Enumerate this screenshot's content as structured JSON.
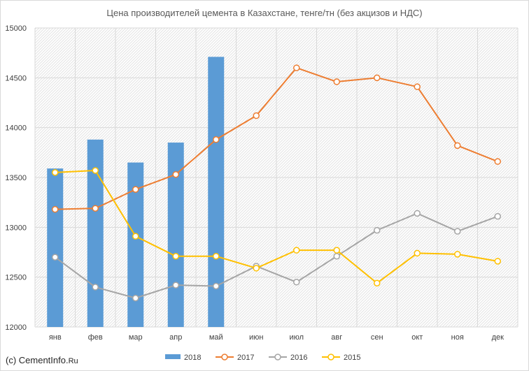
{
  "chart_data": {
    "type": "bar+line",
    "title": "Цена производителей цемента в Казахстане, тенге/тн (без акцизов и НДС)",
    "categories": [
      "янв",
      "фев",
      "мар",
      "апр",
      "май",
      "июн",
      "июл",
      "авг",
      "сен",
      "окт",
      "ноя",
      "дек"
    ],
    "ylim": [
      12000,
      15000
    ],
    "yticks": [
      12000,
      12500,
      13000,
      13500,
      14000,
      14500,
      15000
    ],
    "grid": true,
    "legend_position": "bottom",
    "series": [
      {
        "name": "2018",
        "kind": "bar",
        "color": "#5b9bd5",
        "values": [
          13590,
          13880,
          13650,
          13850,
          14710,
          null,
          null,
          null,
          null,
          null,
          null,
          null
        ]
      },
      {
        "name": "2017",
        "kind": "line",
        "color": "#ed7d31",
        "values": [
          13180,
          13190,
          13380,
          13530,
          13880,
          14120,
          14600,
          14460,
          14500,
          14410,
          13820,
          13660
        ]
      },
      {
        "name": "2016",
        "kind": "line",
        "color": "#a5a5a5",
        "values": [
          12700,
          12400,
          12290,
          12420,
          12410,
          12610,
          12450,
          12710,
          12970,
          13140,
          12960,
          13110
        ]
      },
      {
        "name": "2015",
        "kind": "line",
        "color": "#ffc000",
        "values": [
          13550,
          13570,
          12910,
          12710,
          12710,
          12590,
          12770,
          12770,
          12440,
          12740,
          12730,
          12660
        ]
      }
    ]
  },
  "footer": {
    "credit_prefix": "(c) CementInfo.",
    "credit_suffix": "Ru"
  }
}
